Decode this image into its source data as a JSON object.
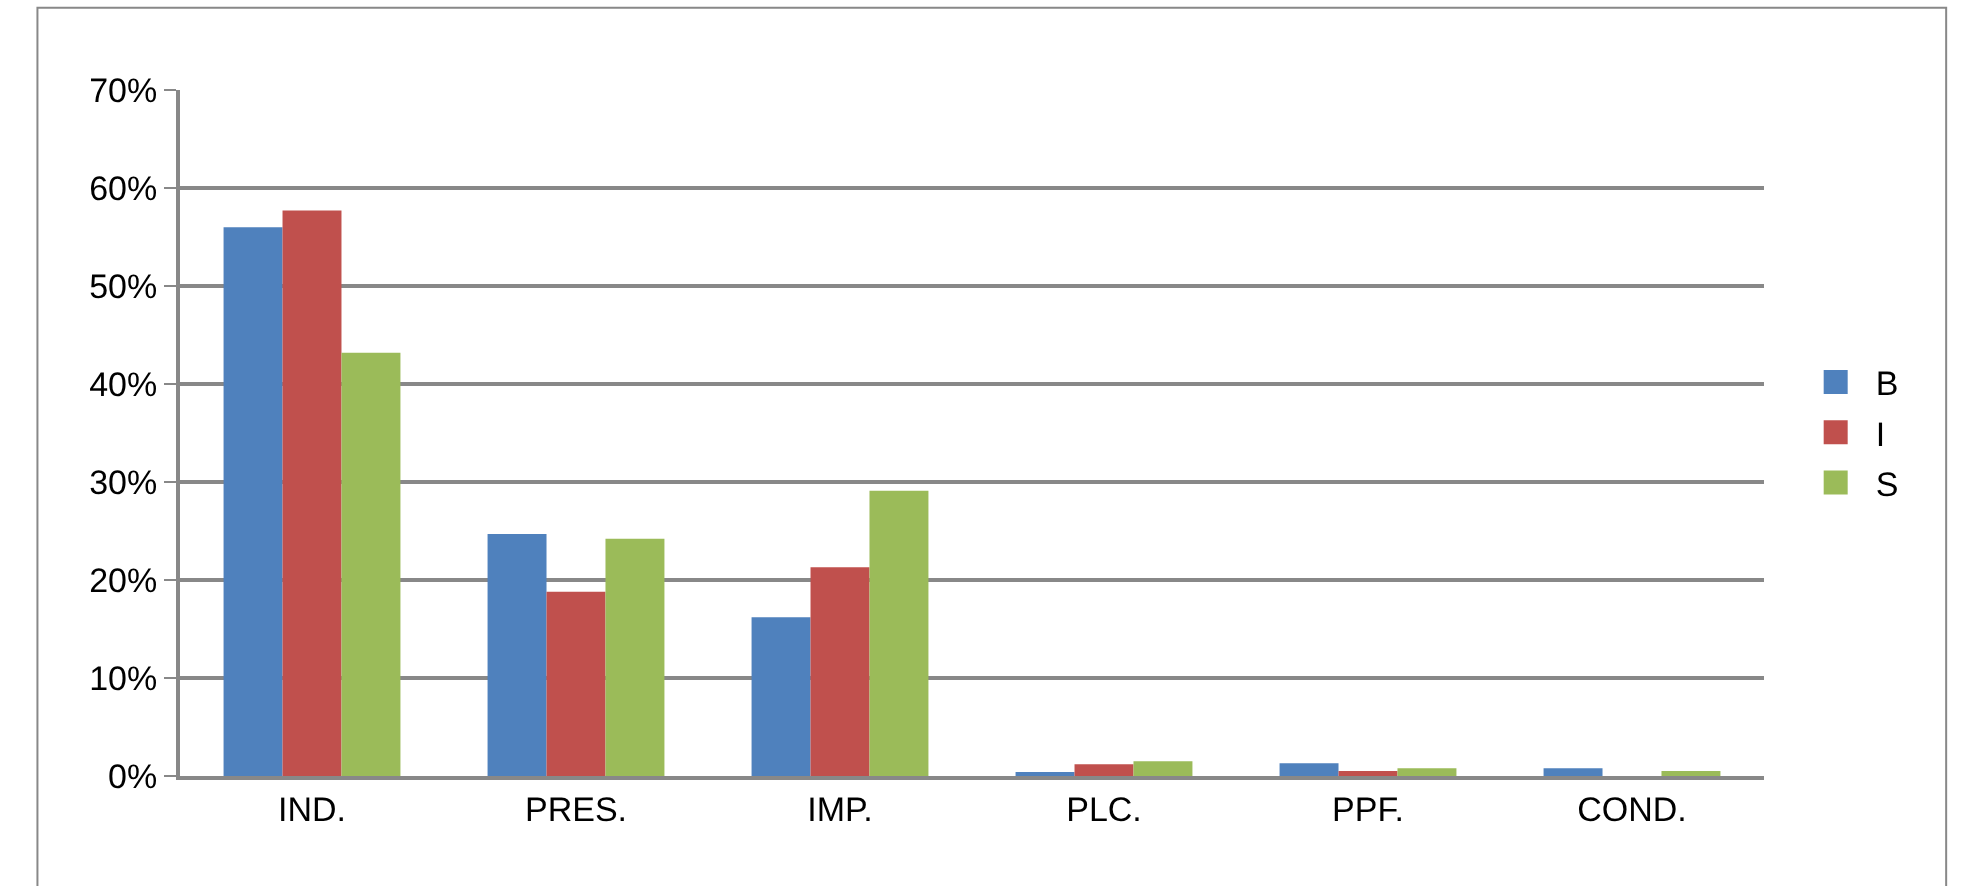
{
  "chart_data": {
    "type": "bar",
    "categories": [
      "IND.",
      "PRES.",
      "IMP.",
      "PLC.",
      "PPF.",
      "COND."
    ],
    "series": [
      {
        "name": "B",
        "color": "#4f81bd",
        "values": [
          56.0,
          24.7,
          16.2,
          0.4,
          1.3,
          0.8
        ]
      },
      {
        "name": "I",
        "color": "#c0504d",
        "values": [
          57.7,
          18.8,
          21.3,
          1.2,
          0.5,
          null
        ]
      },
      {
        "name": "S",
        "color": "#9bbb59",
        "values": [
          43.2,
          24.2,
          29.1,
          1.5,
          0.8,
          0.5
        ]
      }
    ],
    "ylim": [
      0,
      70
    ],
    "yticks": [
      {
        "value": 0,
        "label": "0%"
      },
      {
        "value": 10,
        "label": "10%"
      },
      {
        "value": 20,
        "label": "20%"
      },
      {
        "value": 30,
        "label": "30%"
      },
      {
        "value": 40,
        "label": "40%"
      },
      {
        "value": 50,
        "label": "50%"
      },
      {
        "value": 60,
        "label": "60%"
      },
      {
        "value": 70,
        "label": "70%"
      }
    ],
    "grid": "y",
    "legend": "right"
  }
}
